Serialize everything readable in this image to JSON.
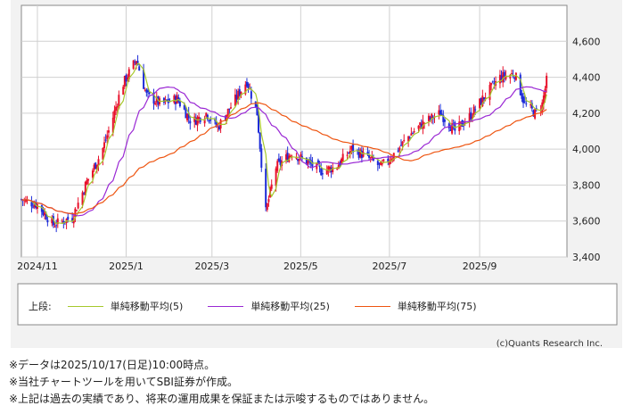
{
  "chart_data": {
    "type": "candlestick",
    "y_ticks": [
      "4,600",
      "4,400",
      "4,200",
      "4,000",
      "3,800",
      "3,600",
      "3,400"
    ],
    "y_tick_values": [
      4600,
      4400,
      4200,
      4000,
      3800,
      3600,
      3400
    ],
    "ylim": [
      3400,
      4800
    ],
    "x_ticks": [
      "2024/11",
      "2025/1",
      "2025/3",
      "2025/5",
      "2025/7",
      "2025/9"
    ],
    "xlim": [
      "2024-10-21",
      "2025-10-31"
    ],
    "grid": true,
    "price_keyframes": [
      [
        "2024-10-21",
        3720
      ],
      [
        "2024-11-01",
        3690
      ],
      [
        "2024-11-12",
        3580
      ],
      [
        "2024-11-25",
        3620
      ],
      [
        "2024-12-05",
        3820
      ],
      [
        "2024-12-15",
        3980
      ],
      [
        "2024-12-22",
        4150
      ],
      [
        "2024-12-29",
        4350
      ],
      [
        "2025-01-08",
        4500
      ],
      [
        "2025-01-15",
        4300
      ],
      [
        "2025-01-25",
        4250
      ],
      [
        "2025-02-05",
        4280
      ],
      [
        "2025-02-15",
        4150
      ],
      [
        "2025-02-25",
        4200
      ],
      [
        "2025-03-05",
        4120
      ],
      [
        "2025-03-15",
        4250
      ],
      [
        "2025-03-25",
        4380
      ],
      [
        "2025-04-01",
        4200
      ],
      [
        "2025-04-07",
        3650
      ],
      [
        "2025-04-14",
        3900
      ],
      [
        "2025-04-25",
        3980
      ],
      [
        "2025-05-05",
        3930
      ],
      [
        "2025-05-15",
        3880
      ],
      [
        "2025-05-25",
        3900
      ],
      [
        "2025-06-05",
        4000
      ],
      [
        "2025-06-15",
        3960
      ],
      [
        "2025-06-25",
        3900
      ],
      [
        "2025-07-05",
        3980
      ],
      [
        "2025-07-15",
        4080
      ],
      [
        "2025-07-25",
        4150
      ],
      [
        "2025-08-05",
        4200
      ],
      [
        "2025-08-15",
        4100
      ],
      [
        "2025-08-25",
        4180
      ],
      [
        "2025-09-05",
        4300
      ],
      [
        "2025-09-15",
        4400
      ],
      [
        "2025-09-25",
        4420
      ],
      [
        "2025-10-02",
        4250
      ],
      [
        "2025-10-09",
        4200
      ],
      [
        "2025-10-14",
        4250
      ],
      [
        "2025-10-17",
        4380
      ]
    ],
    "legend_prefix": "上段:",
    "series": [
      {
        "name": "単純移動平均(5)",
        "color": "#a6c82c"
      },
      {
        "name": "単純移動平均(25)",
        "color": "#9a28d4"
      },
      {
        "name": "単純移動平均(75)",
        "color": "#ee5511"
      }
    ],
    "candle_colors": {
      "up": "#e8102a",
      "down": "#1c2bd8"
    }
  },
  "copyright": "(c)Quants Research Inc.",
  "notes": [
    "※データは2025/10/17(日足)10:00時点。",
    "※当社チャートツールを用いてSBI証券が作成。",
    "※上記は過去の実績であり、将来の運用成果を保証または示唆するものではありません。"
  ]
}
